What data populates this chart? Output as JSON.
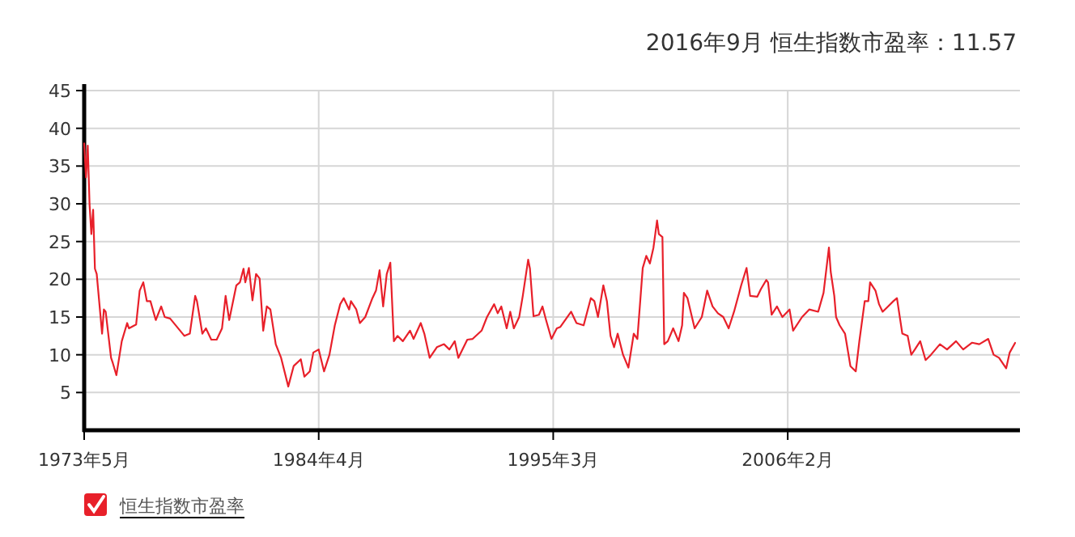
{
  "chart_data": {
    "type": "line",
    "title": "2016年9月 恒生指数市盈率：11.57",
    "xlim": [
      "1973-05",
      "2016-09"
    ],
    "ylim": [
      0,
      45
    ],
    "xticks": [
      {
        "value": "1973-05",
        "label": "1973年5月"
      },
      {
        "value": "1984-04",
        "label": "1984年4月"
      },
      {
        "value": "1995-03",
        "label": "1995年3月"
      },
      {
        "value": "2006-02",
        "label": "2006年2月"
      }
    ],
    "yticks": [
      5,
      10,
      15,
      20,
      25,
      30,
      35,
      40,
      45
    ],
    "grid": true,
    "legend": "bottom left",
    "marker": "none",
    "line_style": "solid",
    "x": [
      "1973-05",
      "1973-06",
      "1973-07",
      "1973-08",
      "1973-09",
      "1973-10",
      "1973-11",
      "1973-12",
      "1974-03",
      "1974-04",
      "1974-05",
      "1974-08",
      "1974-09",
      "1974-11",
      "1975-02",
      "1975-05",
      "1975-06",
      "1975-10",
      "1975-12",
      "1976-02",
      "1976-04",
      "1976-06",
      "1976-09",
      "1976-12",
      "1977-02",
      "1977-05",
      "1978-01",
      "1978-04",
      "1978-07",
      "1978-08",
      "1978-11",
      "1979-01",
      "1979-04",
      "1979-07",
      "1979-10",
      "1979-12",
      "1980-02",
      "1980-06",
      "1980-08",
      "1980-10",
      "1980-11",
      "1981-01",
      "1981-03",
      "1981-05",
      "1981-07",
      "1981-09",
      "1981-11",
      "1982-01",
      "1982-04",
      "1982-07",
      "1982-11",
      "1983-02",
      "1983-06",
      "1983-08",
      "1983-11",
      "1984-01",
      "1984-04",
      "1984-07",
      "1984-10",
      "1985-01",
      "1985-04",
      "1985-05",
      "1985-06",
      "1985-09",
      "1985-10",
      "1986-01",
      "1986-03",
      "1986-06",
      "1986-10",
      "1986-12",
      "1987-02",
      "1987-04",
      "1987-06",
      "1987-08",
      "1987-10",
      "1987-12",
      "1988-03",
      "1988-07",
      "1988-09",
      "1989-01",
      "1989-03",
      "1989-06",
      "1989-10",
      "1990-02",
      "1990-05",
      "1990-08",
      "1990-10",
      "1991-03",
      "1991-06",
      "1991-11",
      "1992-02",
      "1992-06",
      "1992-08",
      "1992-10",
      "1993-01",
      "1993-03",
      "1993-05",
      "1993-08",
      "1993-10",
      "1994-01",
      "1994-02",
      "1994-04",
      "1994-07",
      "1994-09",
      "1994-11",
      "1995-02",
      "1995-05",
      "1995-07",
      "1996-01",
      "1996-04",
      "1996-08",
      "1996-12",
      "1997-02",
      "1997-04",
      "1997-07",
      "1997-09",
      "1997-11",
      "1998-01",
      "1998-03",
      "1998-06",
      "1998-09",
      "1998-12",
      "1999-02",
      "1999-05",
      "1999-07",
      "1999-09",
      "1999-11",
      "2000-01",
      "2000-02",
      "2000-04",
      "2000-05",
      "2000-07",
      "2000-10",
      "2001-01",
      "2001-03",
      "2001-04",
      "2001-06",
      "2001-10",
      "2002-02",
      "2002-05",
      "2002-08",
      "2002-11",
      "2003-02",
      "2003-05",
      "2003-08",
      "2003-12",
      "2004-03",
      "2004-05",
      "2004-09",
      "2004-11",
      "2005-02",
      "2005-03",
      "2005-05",
      "2005-08",
      "2005-11",
      "2006-03",
      "2006-05",
      "2006-10",
      "2007-02",
      "2007-07",
      "2007-10",
      "2008-01",
      "2008-02",
      "2008-04",
      "2008-05",
      "2008-07",
      "2008-10",
      "2009-01",
      "2009-04",
      "2009-06",
      "2009-09",
      "2009-11",
      "2009-12",
      "2010-03",
      "2010-05",
      "2010-07",
      "2010-10",
      "2011-01",
      "2011-03",
      "2011-06",
      "2011-09",
      "2011-11",
      "2012-01",
      "2012-04",
      "2012-07",
      "2012-10",
      "2013-03",
      "2013-07",
      "2013-12",
      "2014-04",
      "2014-09",
      "2015-01",
      "2015-06",
      "2015-09",
      "2015-12",
      "2016-04",
      "2016-06",
      "2016-09"
    ],
    "series": [
      {
        "name": "恒生指数市盈率",
        "color": "#e8202a",
        "values": [
          38,
          33.5,
          37.7,
          29.9,
          26,
          29.2,
          21.4,
          20.7,
          12.8,
          16,
          15.7,
          9.6,
          8.9,
          7.3,
          11.8,
          14.2,
          13.5,
          14,
          18.5,
          19.6,
          17.1,
          17.1,
          14.6,
          16.4,
          15,
          14.8,
          12.5,
          12.8,
          17.8,
          17.1,
          12.8,
          13.5,
          12,
          12,
          13.5,
          17.8,
          14.6,
          19.2,
          19.6,
          21.4,
          19.6,
          21.5,
          17.2,
          20.7,
          20.1,
          13.2,
          16.4,
          16,
          11.4,
          9.6,
          5.8,
          8.5,
          9.4,
          7.1,
          7.8,
          10.3,
          10.7,
          7.8,
          10,
          13.9,
          16.7,
          17.1,
          17.5,
          16,
          17.1,
          16,
          14.2,
          15,
          17.5,
          18.5,
          21.2,
          16.4,
          20.7,
          22.2,
          11.8,
          12.5,
          11.8,
          13.2,
          12.1,
          14.2,
          12.8,
          9.6,
          11,
          11.4,
          10.7,
          11.8,
          9.6,
          12,
          12.1,
          13.2,
          15,
          16.7,
          15.5,
          16.4,
          13.5,
          15.7,
          13.5,
          15,
          17.8,
          22.6,
          21.4,
          15.1,
          15.3,
          16.4,
          14.6,
          12.1,
          13.5,
          13.7,
          15.7,
          14.2,
          13.9,
          17.5,
          17.1,
          15,
          19.2,
          17.1,
          12.5,
          11,
          12.8,
          10,
          8.3,
          12.8,
          12.1,
          21.5,
          23.1,
          22.1,
          24.2,
          27.8,
          26,
          25.6,
          11.4,
          11.8,
          13.5,
          11.8,
          13.9,
          18.2,
          17.5,
          13.5,
          15,
          18.5,
          16.4,
          15.5,
          15,
          13.5,
          15.7,
          19.2,
          21.5,
          17.8,
          17.7,
          18.7,
          19.9,
          19.6,
          15.3,
          16.4,
          15,
          16,
          13.2,
          15,
          16,
          15.7,
          18.2,
          24.2,
          21,
          17.8,
          15,
          13.9,
          12.8,
          8.5,
          7.8,
          11.8,
          17.1,
          17.1,
          19.6,
          18.5,
          16.7,
          15.7,
          16.4,
          17.1,
          17.5,
          12.8,
          12.5,
          10,
          10.7,
          11.8,
          9.3,
          10,
          11.4,
          10.7,
          11.8,
          10.7,
          11.6,
          11.4,
          12.1,
          10,
          9.6,
          8.2,
          10.3,
          11.57
        ]
      }
    ]
  }
}
